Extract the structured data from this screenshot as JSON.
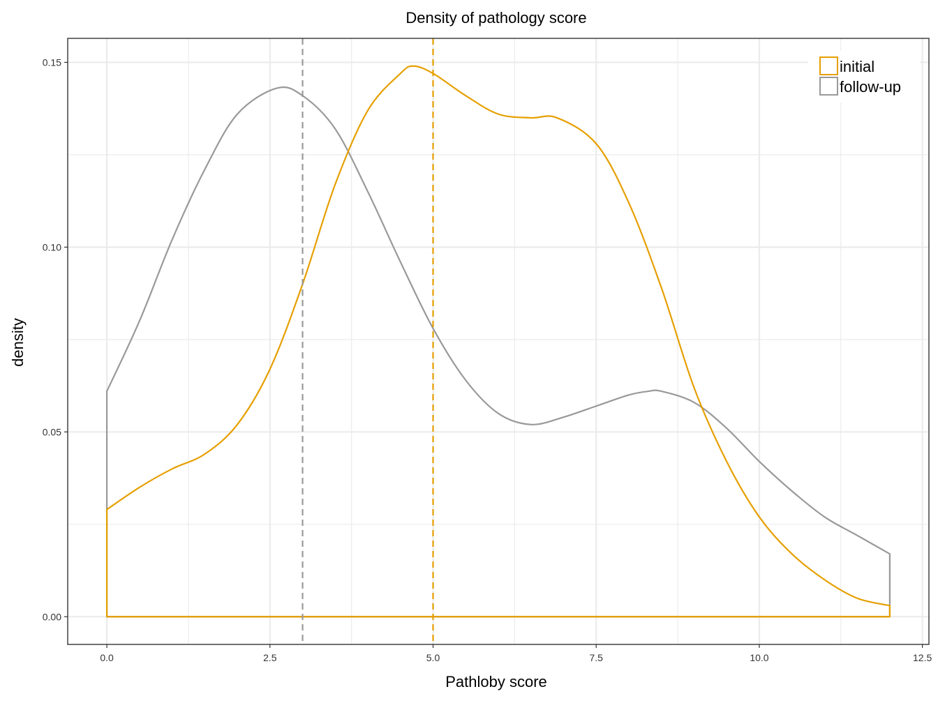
{
  "chart_data": {
    "type": "line",
    "title": "Density of pathology score",
    "xlabel": "Pathloby score",
    "ylabel": "density",
    "xlim": [
      -0.6,
      12.6
    ],
    "ylim": [
      -0.0075,
      0.1565
    ],
    "x_ticks": [
      0.0,
      2.5,
      5.0,
      7.5,
      10.0,
      12.5
    ],
    "x_tick_labels": [
      "0.0",
      "2.5",
      "5.0",
      "7.5",
      "10.0",
      "12.5"
    ],
    "y_ticks": [
      0.0,
      0.05,
      0.1,
      0.15
    ],
    "y_tick_labels": [
      "0.00",
      "0.05",
      "0.10",
      "0.15"
    ],
    "grid": true,
    "legend_position": "top-right",
    "series": [
      {
        "name": "initial",
        "color": "#E69F00",
        "x": [
          0,
          0.5,
          1.0,
          1.5,
          2.0,
          2.5,
          3.0,
          3.5,
          4.0,
          4.5,
          4.7,
          5.0,
          5.5,
          6.0,
          6.5,
          6.9,
          7.5,
          8.0,
          8.5,
          9.0,
          9.5,
          10.0,
          10.5,
          11.0,
          11.5,
          12.0
        ],
        "values": [
          0.029,
          0.035,
          0.04,
          0.044,
          0.052,
          0.067,
          0.09,
          0.117,
          0.137,
          0.147,
          0.149,
          0.147,
          0.141,
          0.136,
          0.135,
          0.135,
          0.128,
          0.112,
          0.089,
          0.062,
          0.042,
          0.027,
          0.017,
          0.01,
          0.005,
          0.003
        ]
      },
      {
        "name": "follow-up",
        "color": "#999999",
        "x": [
          0,
          0.5,
          1.0,
          1.5,
          2.0,
          2.6,
          3.0,
          3.5,
          4.0,
          4.5,
          5.0,
          5.5,
          6.0,
          6.5,
          7.0,
          7.5,
          8.0,
          8.3,
          8.5,
          9.0,
          9.5,
          10.0,
          10.5,
          11.0,
          11.5,
          12.0
        ],
        "values": [
          0.061,
          0.08,
          0.102,
          0.121,
          0.136,
          0.143,
          0.141,
          0.132,
          0.115,
          0.096,
          0.078,
          0.064,
          0.055,
          0.052,
          0.054,
          0.057,
          0.06,
          0.061,
          0.061,
          0.058,
          0.051,
          0.042,
          0.034,
          0.027,
          0.022,
          0.017
        ]
      }
    ],
    "vlines": [
      {
        "series": "follow-up",
        "x": 3.0,
        "color": "#999999",
        "style": "dashed"
      },
      {
        "series": "initial",
        "x": 5.0,
        "color": "#E69F00",
        "style": "dashed"
      }
    ]
  }
}
